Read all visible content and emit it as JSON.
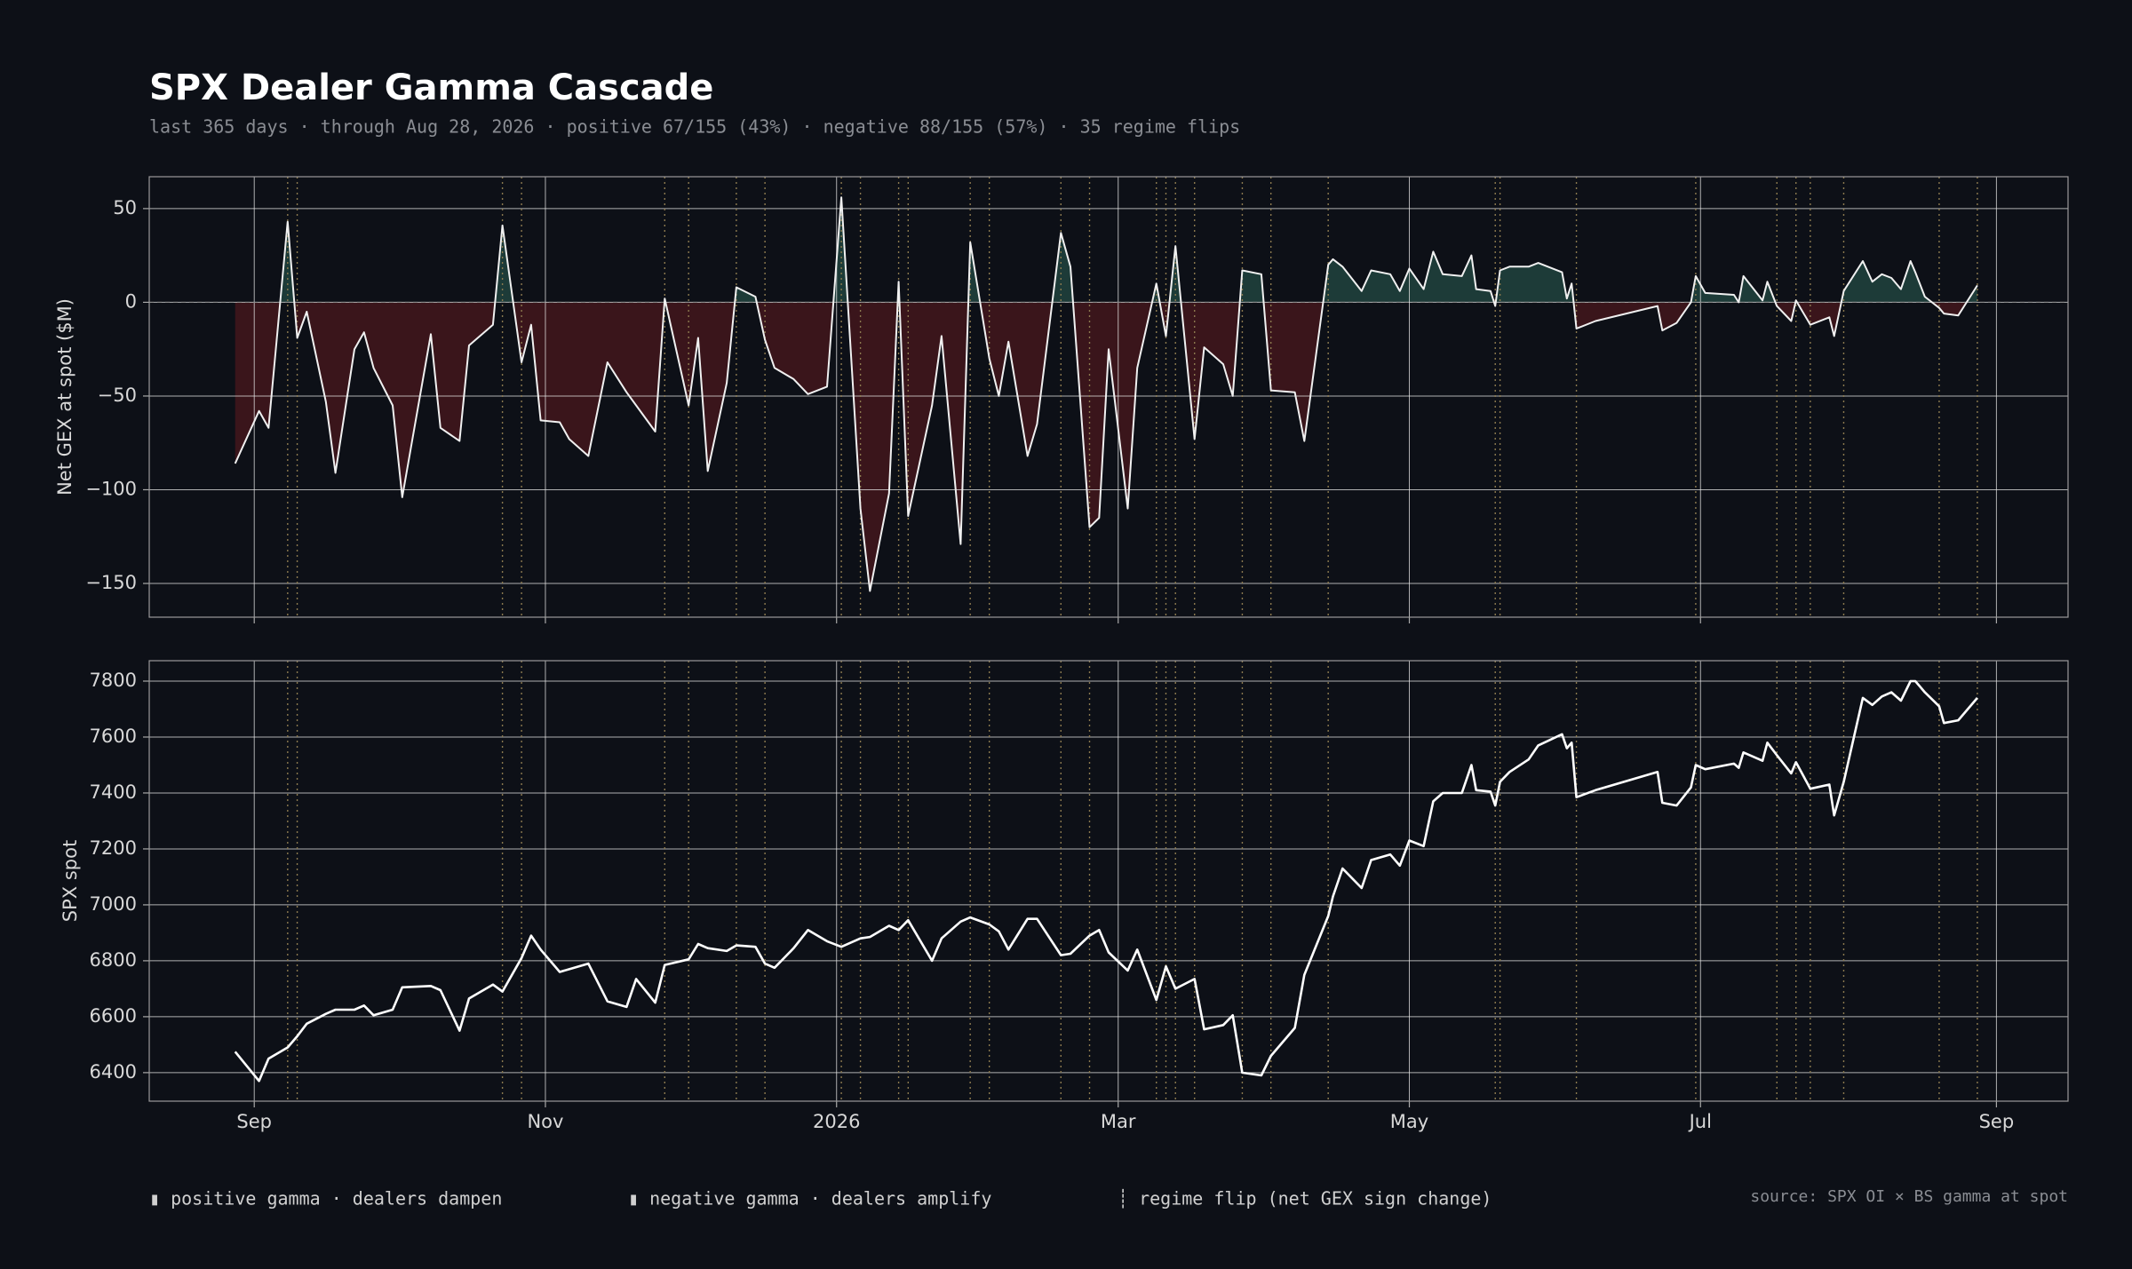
{
  "title": "SPX Dealer Gamma Cascade",
  "subtitle": "last 365 days  ·  through Aug 28, 2026  ·  positive 67/155 (43%)  ·  negative 88/155 (57%)  ·  35 regime flips",
  "legend": [
    "▮ positive gamma  ·  dealers dampen",
    "▮ negative gamma  ·  dealers amplify",
    "┊ regime flip (net GEX sign change)"
  ],
  "source": "source: SPX OI × BS gamma at spot",
  "chart_data": [
    {
      "type": "area",
      "ylabel": "Net GEX at spot ($M)",
      "line_color": "#f0f0f0",
      "pos_color": "#1d3b38",
      "neg_color": "#3a151b",
      "flip_color": "#8c7a4f",
      "grid": true,
      "x": [
        0,
        5,
        7,
        11,
        13,
        15,
        19,
        21,
        25,
        27,
        29,
        33,
        35,
        41,
        43,
        47,
        49,
        54,
        56,
        60,
        62,
        64,
        68,
        70,
        74,
        78,
        82,
        84,
        88,
        90,
        95,
        97,
        99,
        103,
        105,
        109,
        111,
        113,
        117,
        120,
        124,
        127,
        131,
        133,
        137,
        139,
        141,
        146,
        148,
        152,
        154,
        158,
        160,
        162,
        166,
        168,
        173,
        175,
        179,
        181,
        183,
        187,
        189,
        193,
        195,
        197,
        201,
        203,
        207,
        209,
        211,
        215,
        217,
        222,
        224,
        229,
        230,
        232,
        236,
        238,
        242,
        244,
        246,
        249,
        251,
        253,
        257,
        259,
        260,
        263,
        264,
        265,
        267,
        271,
        273,
        278,
        279,
        280,
        281,
        285,
        298,
        299,
        302,
        305,
        306,
        308,
        314,
        315,
        316,
        320,
        321,
        323,
        326,
        327,
        330,
        334,
        335,
        337,
        341,
        343,
        345,
        347,
        349,
        351,
        352,
        354,
        357,
        358,
        361,
        365
      ],
      "values": [
        -86,
        -58,
        -67,
        43,
        -19,
        -5,
        -53,
        -91,
        -25,
        -16,
        -35,
        -55,
        -104,
        -17,
        -67,
        -74,
        -23,
        -12,
        41,
        -32,
        -12,
        -63,
        -64,
        -73,
        -82,
        -32,
        -48,
        -55,
        -69,
        2,
        -55,
        -19,
        -90,
        -43,
        8,
        3,
        -20,
        -35,
        -41,
        -49,
        -45,
        56,
        -110,
        -154,
        -102,
        11,
        -114,
        -55,
        -18,
        -129,
        32,
        -30,
        -50,
        -21,
        -82,
        -65,
        37,
        19,
        -120,
        -115,
        -25,
        -110,
        -35,
        10,
        -18,
        30,
        -73,
        -24,
        -33,
        -50,
        17,
        15,
        -47,
        -48,
        -74,
        20,
        23,
        19,
        6,
        17,
        15,
        6,
        18,
        7,
        27,
        15,
        14,
        25,
        7,
        6,
        -2,
        17,
        19,
        19,
        21,
        16,
        2,
        10,
        -14,
        -10,
        -2,
        -15,
        -11,
        0,
        14,
        5,
        4,
        0,
        14,
        1,
        11,
        -2,
        -10,
        1,
        -12,
        -8,
        -18,
        6,
        22,
        11,
        15,
        13,
        7,
        22,
        16,
        3,
        -3,
        -6,
        -7,
        9
      ],
      "xlim": [
        -18,
        384
      ],
      "ylim": [
        -168,
        67
      ],
      "yticks": [
        {
          "value": -150,
          "label": "−150"
        },
        {
          "value": -100,
          "label": "−100"
        },
        {
          "value": -50,
          "label": "−50"
        },
        0,
        50
      ]
    },
    {
      "type": "line",
      "ylabel": "SPX spot",
      "line_color": "#ffffff",
      "grid": true,
      "x": [
        0,
        5,
        7,
        11,
        13,
        15,
        19,
        21,
        25,
        27,
        29,
        33,
        35,
        41,
        43,
        47,
        49,
        54,
        56,
        60,
        62,
        64,
        68,
        70,
        74,
        78,
        82,
        84,
        88,
        90,
        95,
        97,
        99,
        103,
        105,
        109,
        111,
        113,
        117,
        120,
        124,
        127,
        131,
        133,
        137,
        139,
        141,
        146,
        148,
        152,
        154,
        158,
        160,
        162,
        166,
        168,
        173,
        175,
        179,
        181,
        183,
        187,
        189,
        193,
        195,
        197,
        201,
        203,
        207,
        209,
        211,
        215,
        217,
        222,
        224,
        229,
        230,
        232,
        236,
        238,
        242,
        244,
        246,
        249,
        251,
        253,
        257,
        259,
        260,
        263,
        264,
        265,
        267,
        271,
        273,
        278,
        279,
        280,
        281,
        285,
        298,
        299,
        302,
        305,
        306,
        308,
        314,
        315,
        316,
        320,
        321,
        323,
        326,
        327,
        330,
        334,
        335,
        337,
        341,
        343,
        345,
        347,
        349,
        351,
        352,
        354,
        357,
        358,
        361,
        365
      ],
      "values": [
        6475,
        6370,
        6450,
        6490,
        6530,
        6575,
        6610,
        6625,
        6625,
        6640,
        6605,
        6625,
        6705,
        6710,
        6695,
        6550,
        6665,
        6715,
        6690,
        6810,
        6890,
        6840,
        6760,
        6770,
        6790,
        6655,
        6635,
        6735,
        6650,
        6785,
        6805,
        6860,
        6845,
        6835,
        6855,
        6850,
        6790,
        6775,
        6845,
        6910,
        6870,
        6850,
        6880,
        6885,
        6925,
        6910,
        6945,
        6800,
        6880,
        6940,
        6955,
        6930,
        6905,
        6840,
        6950,
        6950,
        6820,
        6825,
        6890,
        6910,
        6830,
        6765,
        6840,
        6660,
        6780,
        6700,
        6735,
        6555,
        6570,
        6605,
        6400,
        6390,
        6460,
        6560,
        6750,
        6960,
        7030,
        7130,
        7060,
        7160,
        7180,
        7140,
        7230,
        7210,
        7370,
        7400,
        7400,
        7500,
        7410,
        7405,
        7355,
        7440,
        7475,
        7520,
        7570,
        7610,
        7560,
        7580,
        7385,
        7410,
        7475,
        7365,
        7355,
        7420,
        7500,
        7485,
        7505,
        7490,
        7545,
        7515,
        7580,
        7535,
        7470,
        7510,
        7415,
        7430,
        7320,
        7440,
        7740,
        7715,
        7745,
        7760,
        7730,
        7800,
        7800,
        7760,
        7710,
        7650,
        7660,
        7740
      ],
      "xlim": [
        -18,
        384
      ],
      "ylim": [
        6298,
        7873
      ],
      "xticks": [
        {
          "value": 4,
          "label": "Sep"
        },
        {
          "value": 65,
          "label": "Nov"
        },
        {
          "value": 126,
          "label": "2026"
        },
        {
          "value": 185,
          "label": "Mar"
        },
        {
          "value": 246,
          "label": "May"
        },
        {
          "value": 307,
          "label": "Jul"
        },
        {
          "value": 369,
          "label": "Sep"
        }
      ],
      "yticks": [
        6400,
        6600,
        6800,
        7000,
        7200,
        7400,
        7600,
        7800
      ]
    }
  ]
}
